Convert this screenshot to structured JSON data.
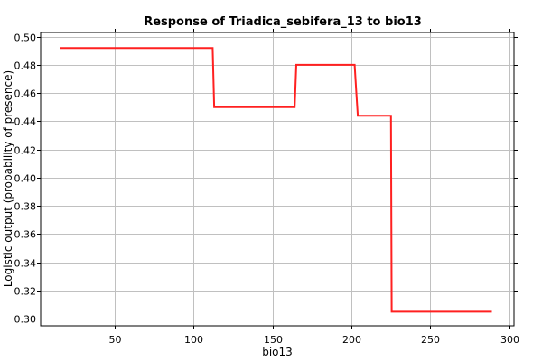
{
  "chart_data": {
    "type": "line",
    "title": "Response of Triadica_sebifera_13 to bio13",
    "xlabel": "bio13",
    "ylabel": "Logistic output (probability of presence)",
    "xlim": [
      3,
      303
    ],
    "ylim": [
      0.295,
      0.503
    ],
    "xticks": [
      50,
      100,
      150,
      200,
      250,
      300
    ],
    "yticks": [
      0.3,
      0.32,
      0.34,
      0.36,
      0.38,
      0.4,
      0.42,
      0.44,
      0.46,
      0.48,
      0.5
    ],
    "xtick_labels": [
      "50",
      "100",
      "150",
      "200",
      "250",
      "300"
    ],
    "ytick_labels": [
      "0.30",
      "0.32",
      "0.34",
      "0.36",
      "0.38",
      "0.40",
      "0.42",
      "0.44",
      "0.46",
      "0.48",
      "0.50"
    ],
    "grid": true,
    "series": [
      {
        "color": "#ff2020",
        "x": [
          15,
          112,
          113,
          164,
          165,
          202,
          203,
          204,
          225,
          225.5,
          289
        ],
        "y": [
          0.492,
          0.492,
          0.45,
          0.45,
          0.48,
          0.48,
          0.462,
          0.444,
          0.444,
          0.305,
          0.305
        ]
      }
    ]
  }
}
